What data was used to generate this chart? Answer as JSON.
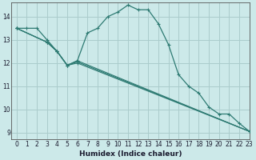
{
  "xlabel": "Humidex (Indice chaleur)",
  "background_color": "#cce9e9",
  "grid_color": "#aacccc",
  "line_color": "#2d7a72",
  "xlim": [
    -0.5,
    23
  ],
  "ylim": [
    8.7,
    14.6
  ],
  "yticks": [
    9,
    10,
    11,
    12,
    13,
    14
  ],
  "xticks": [
    0,
    1,
    2,
    3,
    4,
    5,
    6,
    7,
    8,
    9,
    10,
    11,
    12,
    13,
    14,
    15,
    16,
    17,
    18,
    19,
    20,
    21,
    22,
    23
  ],
  "s1_x": [
    0,
    1,
    2,
    3,
    4,
    5,
    6,
    7,
    8,
    9,
    10,
    11,
    12,
    13,
    14,
    15,
    16,
    17,
    18,
    19,
    20,
    21,
    22,
    23
  ],
  "s1_y": [
    13.5,
    13.5,
    13.5,
    13.0,
    12.5,
    11.9,
    12.1,
    13.3,
    13.5,
    14.0,
    14.2,
    14.5,
    14.3,
    14.3,
    13.7,
    12.8,
    11.5,
    11.0,
    10.7,
    10.1,
    9.8,
    9.8,
    9.4,
    9.05
  ],
  "s2_x": [
    0,
    3,
    4,
    5,
    6,
    23
  ],
  "s2_y": [
    13.5,
    12.9,
    12.5,
    11.9,
    12.1,
    9.05
  ],
  "s3_x": [
    0,
    3,
    4,
    5,
    6,
    23
  ],
  "s3_y": [
    13.5,
    12.9,
    12.5,
    11.9,
    12.05,
    9.05
  ],
  "s4_x": [
    0,
    3,
    4,
    5,
    6,
    23
  ],
  "s4_y": [
    13.5,
    12.9,
    12.5,
    11.9,
    12.0,
    9.05
  ]
}
